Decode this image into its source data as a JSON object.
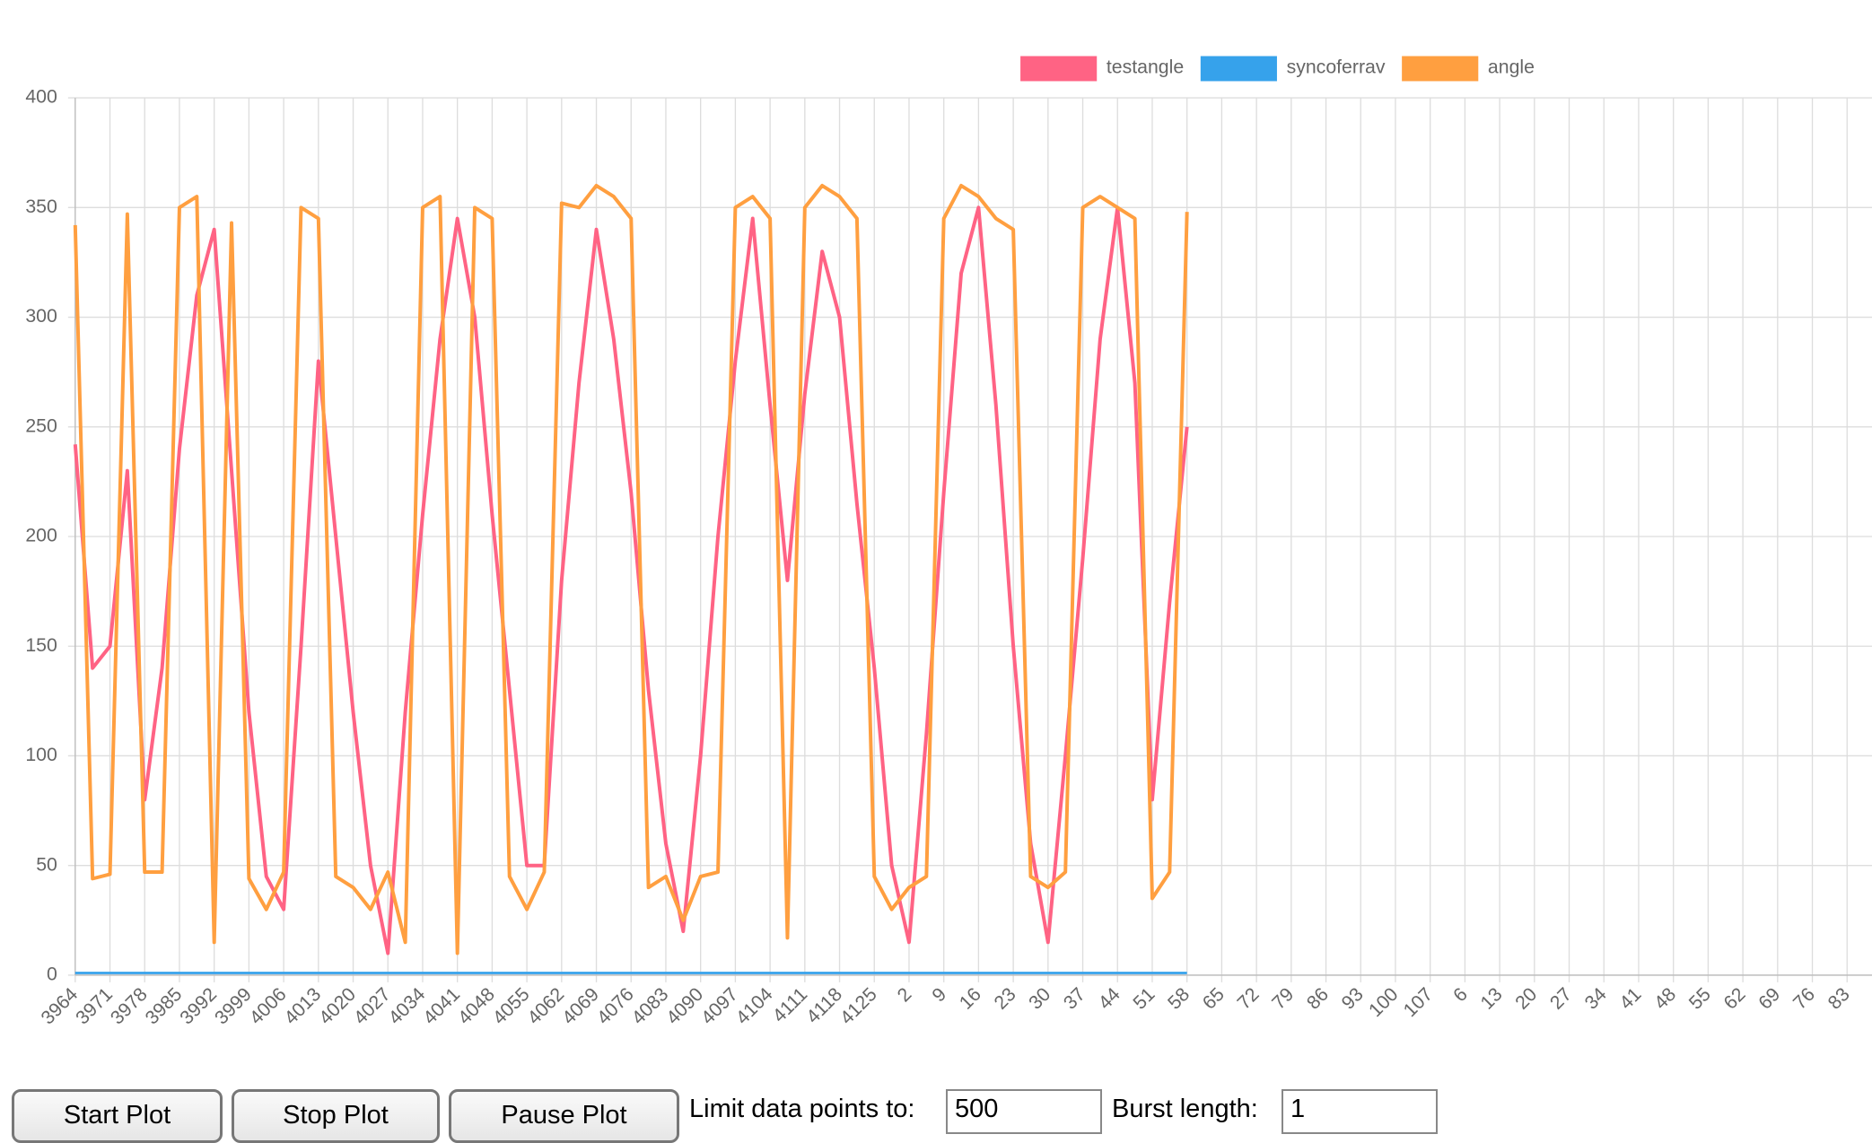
{
  "chart_data": {
    "type": "line",
    "categories": [
      "3964",
      null,
      "3971",
      null,
      "3978",
      null,
      "3985",
      null,
      "3992",
      null,
      "3999",
      null,
      "4006",
      null,
      "4013",
      null,
      "4020",
      null,
      "4027",
      null,
      "4034",
      null,
      "4041",
      null,
      "4048",
      null,
      "4055",
      null,
      "4062",
      null,
      "4069",
      null,
      "4076",
      null,
      "4083",
      null,
      "4090",
      null,
      "4097",
      null,
      "4104",
      null,
      "4111",
      null,
      "4118",
      null,
      "4125",
      null,
      "2",
      null,
      "9",
      null,
      "16",
      null,
      "23",
      null,
      "30",
      null,
      "37",
      null,
      "44",
      null,
      "51",
      null,
      "58",
      null,
      "65",
      null,
      "72",
      null,
      "79",
      null,
      "86",
      null,
      "93",
      null,
      "100",
      null,
      "107",
      null,
      "6",
      null,
      "13",
      null,
      "20",
      null,
      "27",
      null,
      "34",
      null,
      "41",
      null,
      "48",
      null,
      "55",
      null,
      "62",
      null,
      "69",
      null,
      "76",
      null,
      "83"
    ],
    "series": [
      {
        "name": "testangle",
        "color": "#ff6384",
        "values": [
          242,
          140,
          150,
          230,
          80,
          140,
          240,
          310,
          340,
          230,
          120,
          45,
          30,
          150,
          280,
          200,
          120,
          50,
          10,
          120,
          210,
          290,
          345,
          300,
          210,
          130,
          50,
          50,
          180,
          270,
          340,
          290,
          220,
          130,
          60,
          20,
          100,
          200,
          280,
          345,
          260,
          180,
          265,
          330,
          300,
          215,
          140,
          50,
          15,
          110,
          220,
          320,
          350,
          260,
          150,
          60,
          15,
          100,
          190,
          290,
          350,
          270,
          80,
          170,
          250,
          null,
          null,
          null,
          null,
          null,
          null,
          null,
          null,
          null,
          null,
          null,
          null,
          null,
          null,
          null,
          null,
          null,
          null,
          null,
          null,
          null,
          null,
          null,
          null,
          null,
          null,
          null,
          null,
          null,
          null,
          null,
          null,
          null,
          null,
          null,
          null,
          null,
          null
        ]
      },
      {
        "name": "syncoferrav",
        "color": "#36a2eb",
        "values": [
          1,
          1,
          1,
          1,
          1,
          1,
          1,
          1,
          1,
          1,
          1,
          1,
          1,
          1,
          1,
          1,
          1,
          1,
          1,
          1,
          1,
          1,
          1,
          1,
          1,
          1,
          1,
          1,
          1,
          1,
          1,
          1,
          1,
          1,
          1,
          1,
          1,
          1,
          1,
          1,
          1,
          1,
          1,
          1,
          1,
          1,
          1,
          1,
          1,
          1,
          1,
          1,
          1,
          1,
          1,
          1,
          1,
          1,
          1,
          1,
          1,
          1,
          1,
          1,
          1,
          null,
          null,
          null,
          null,
          null,
          null,
          null,
          null,
          null,
          null,
          null,
          null,
          null,
          null,
          null,
          null,
          null,
          null,
          null,
          null,
          null,
          null,
          null,
          null,
          null,
          null,
          null,
          null,
          null,
          null,
          null,
          null,
          null,
          null,
          null,
          null,
          null,
          null
        ]
      },
      {
        "name": "angle",
        "color": "#ff9f40",
        "values": [
          342,
          44,
          46,
          347,
          47,
          47,
          350,
          355,
          15,
          343,
          44,
          30,
          47,
          350,
          345,
          45,
          40,
          30,
          47,
          15,
          350,
          355,
          10,
          350,
          345,
          45,
          30,
          47,
          352,
          350,
          360,
          355,
          345,
          40,
          45,
          25,
          45,
          47,
          350,
          355,
          345,
          17,
          350,
          360,
          355,
          345,
          45,
          30,
          40,
          45,
          345,
          360,
          355,
          345,
          340,
          45,
          40,
          47,
          350,
          355,
          350,
          345,
          35,
          47,
          348,
          null,
          null,
          null,
          null,
          null,
          null,
          null,
          null,
          null,
          null,
          null,
          null,
          null,
          null,
          null,
          null,
          null,
          null,
          null,
          null,
          null,
          null,
          null,
          null,
          null,
          null,
          null,
          null,
          null,
          null,
          null,
          null,
          null,
          null,
          null,
          null,
          null,
          null
        ]
      }
    ],
    "ylim": [
      0,
      400
    ],
    "yticks": [
      0,
      50,
      100,
      150,
      200,
      250,
      300,
      350,
      400
    ],
    "grid": true,
    "legend": "top"
  },
  "controls": {
    "buttons": [
      "Start Plot",
      "Stop Plot",
      "Pause Plot"
    ],
    "limit_label": "Limit data points to:",
    "limit_value": "500",
    "burst_label": "Burst length:",
    "burst_value": "1"
  }
}
